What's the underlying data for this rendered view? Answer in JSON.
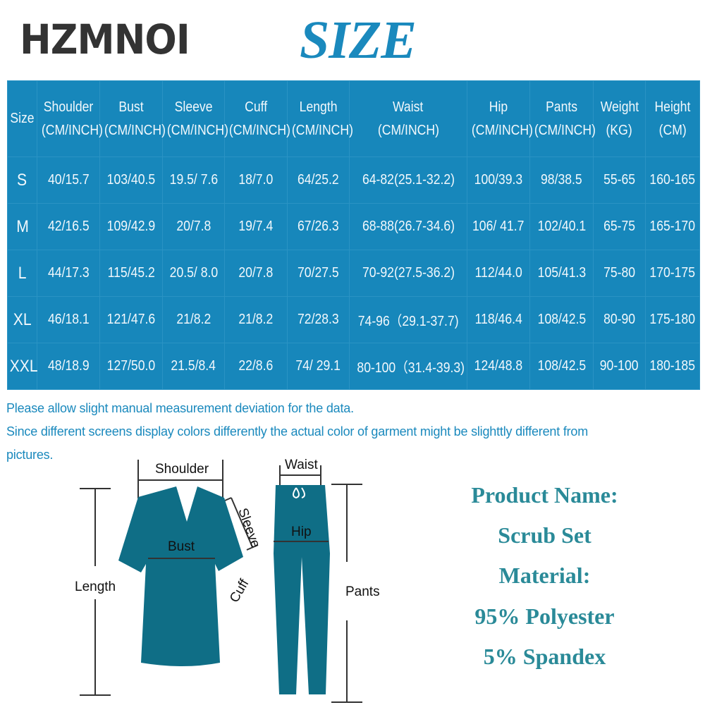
{
  "brand": "HZMNOI",
  "title": "SIZE",
  "table": {
    "headers": [
      {
        "name": "Size",
        "unit": ""
      },
      {
        "name": "Shoulder",
        "unit": "(CM/INCH)"
      },
      {
        "name": "Bust",
        "unit": "(CM/INCH)"
      },
      {
        "name": "Sleeve",
        "unit": "(CM/INCH)"
      },
      {
        "name": "Cuff",
        "unit": "(CM/INCH)"
      },
      {
        "name": "Length",
        "unit": "(CM/INCH)"
      },
      {
        "name": "Waist",
        "unit": "(CM/INCH)"
      },
      {
        "name": "Hip",
        "unit": "(CM/INCH)"
      },
      {
        "name": "Pants",
        "unit": "(CM/INCH)"
      },
      {
        "name": "Weight",
        "unit": "(KG)"
      },
      {
        "name": "Height",
        "unit": "(CM)"
      }
    ],
    "rows": [
      [
        "S",
        "40/15.7",
        "103/40.5",
        "19.5/ 7.6",
        "18/7.0",
        "64/25.2",
        "64-82(25.1-32.2)",
        "100/39.3",
        "98/38.5",
        "55-65",
        "160-165"
      ],
      [
        "M",
        "42/16.5",
        "109/42.9",
        "20/7.8",
        "19/7.4",
        "67/26.3",
        "68-88(26.7-34.6)",
        "106/ 41.7",
        "102/40.1",
        "65-75",
        "165-170"
      ],
      [
        "L",
        "44/17.3",
        "115/45.2",
        "20.5/ 8.0",
        "20/7.8",
        "70/27.5",
        "70-92(27.5-36.2)",
        "112/44.0",
        "105/41.3",
        "75-80",
        "170-175"
      ],
      [
        "XL",
        "46/18.1",
        "121/47.6",
        "21/8.2",
        "21/8.2",
        "72/28.3",
        "74-96（29.1-37.7)",
        "118/46.4",
        "108/42.5",
        "80-90",
        "175-180"
      ],
      [
        "XXL",
        "48/18.9",
        "127/50.0",
        "21.5/8.4",
        "22/8.6",
        "74/ 29.1",
        "80-100（31.4-39.3)",
        "124/48.8",
        "108/42.5",
        "90-100",
        "180-185"
      ]
    ]
  },
  "notes": [
    "Please allow slight manual measurement deviation for the data.",
    "Since different screens display colors differently the actual color of garment might be slighttly different from",
    "pictures."
  ],
  "diagram_labels": {
    "shoulder": "Shoulder",
    "sleeve": "Sleeve",
    "bust": "Bust",
    "cuff": "Cuff",
    "length": "Length",
    "waist": "Waist",
    "hip": "Hip",
    "pants": "Pants"
  },
  "product": [
    "Product Name:",
    "Scrub Set",
    "Material:",
    "95% Polyester",
    "5% Spandex"
  ],
  "colors": {
    "table_bg": "#1787bb",
    "title": "#1a89bd",
    "garment": "#0f6e86",
    "product_text": "#2a8a98"
  }
}
